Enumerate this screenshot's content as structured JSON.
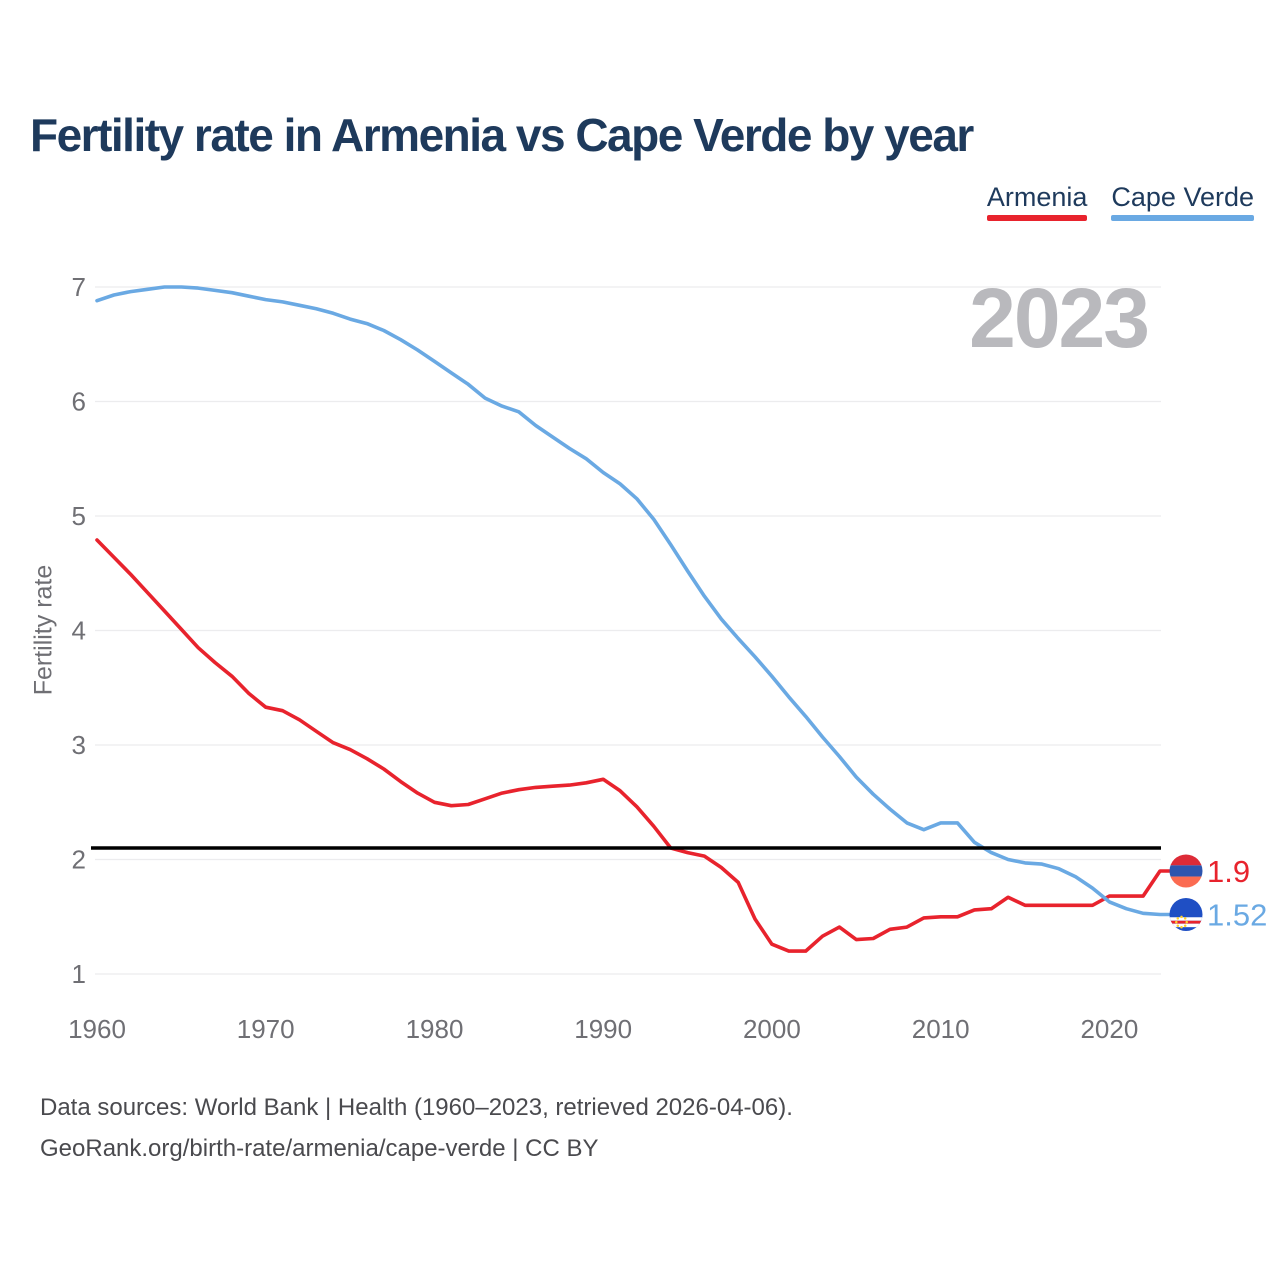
{
  "title": "Fertility rate in Armenia vs Cape Verde by year",
  "watermark": "2023",
  "legend": {
    "items": [
      {
        "label": "Armenia",
        "color": "#e8232d"
      },
      {
        "label": "Cape Verde",
        "color": "#6aa9e3"
      }
    ]
  },
  "footer": {
    "line1": "Data sources: World Bank | Health (1960–2023, retrieved 2026-04-06).",
    "line2": "GeoRank.org/birth-rate/armenia/cape-verde | CC BY"
  },
  "chart_data": {
    "type": "line",
    "title": "Fertility rate in Armenia vs Cape Verde by year",
    "xlabel": "",
    "ylabel": "Fertility rate",
    "xlim": [
      1960,
      2023
    ],
    "ylim": [
      1,
      7
    ],
    "x_ticks": [
      1960,
      1970,
      1980,
      1990,
      2000,
      2010,
      2020
    ],
    "y_ticks": [
      1,
      2,
      3,
      4,
      5,
      6,
      7
    ],
    "grid": "horizontal-light",
    "legend_position": "top-right",
    "reference_line": {
      "value": 2.1,
      "color": "#000000"
    },
    "years": [
      1960,
      1961,
      1962,
      1963,
      1964,
      1965,
      1966,
      1967,
      1968,
      1969,
      1970,
      1971,
      1972,
      1973,
      1974,
      1975,
      1976,
      1977,
      1978,
      1979,
      1980,
      1981,
      1982,
      1983,
      1984,
      1985,
      1986,
      1987,
      1988,
      1989,
      1990,
      1991,
      1992,
      1993,
      1994,
      1995,
      1996,
      1997,
      1998,
      1999,
      2000,
      2001,
      2002,
      2003,
      2004,
      2005,
      2006,
      2007,
      2008,
      2009,
      2010,
      2011,
      2012,
      2013,
      2014,
      2015,
      2016,
      2017,
      2018,
      2019,
      2020,
      2021,
      2022,
      2023
    ],
    "series": [
      {
        "name": "Armenia",
        "color": "#e8232d",
        "flag": "armenia",
        "end_label": "1.9",
        "end_value": 1.9,
        "values": [
          4.79,
          4.64,
          4.49,
          4.33,
          4.17,
          4.01,
          3.85,
          3.72,
          3.6,
          3.45,
          3.33,
          3.3,
          3.22,
          3.12,
          3.02,
          2.96,
          2.88,
          2.79,
          2.68,
          2.58,
          2.5,
          2.47,
          2.48,
          2.53,
          2.58,
          2.61,
          2.63,
          2.64,
          2.65,
          2.67,
          2.7,
          2.6,
          2.46,
          2.29,
          2.1,
          2.06,
          2.03,
          1.93,
          1.8,
          1.48,
          1.26,
          1.2,
          1.2,
          1.33,
          1.41,
          1.3,
          1.31,
          1.39,
          1.41,
          1.49,
          1.5,
          1.5,
          1.56,
          1.57,
          1.67,
          1.6,
          1.6,
          1.6,
          1.6,
          1.6,
          1.68,
          1.68,
          1.68,
          1.9
        ]
      },
      {
        "name": "Cape Verde",
        "color": "#6aa9e3",
        "flag": "cape_verde",
        "end_label": "1.52",
        "end_value": 1.52,
        "values": [
          6.88,
          6.93,
          6.96,
          6.98,
          7.0,
          7.0,
          6.99,
          6.97,
          6.95,
          6.92,
          6.89,
          6.87,
          6.84,
          6.81,
          6.77,
          6.72,
          6.68,
          6.62,
          6.54,
          6.45,
          6.35,
          6.25,
          6.15,
          6.03,
          5.96,
          5.91,
          5.79,
          5.69,
          5.59,
          5.5,
          5.38,
          5.28,
          5.15,
          4.97,
          4.75,
          4.52,
          4.3,
          4.1,
          3.93,
          3.77,
          3.6,
          3.42,
          3.25,
          3.07,
          2.9,
          2.72,
          2.57,
          2.44,
          2.32,
          2.26,
          2.32,
          2.32,
          2.15,
          2.06,
          2.0,
          1.97,
          1.96,
          1.92,
          1.85,
          1.75,
          1.63,
          1.57,
          1.53,
          1.52
        ]
      }
    ]
  }
}
